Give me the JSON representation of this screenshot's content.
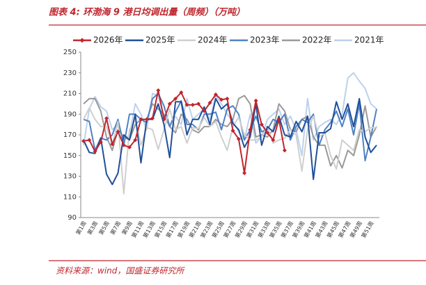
{
  "chart_data": {
    "type": "line",
    "title": "图表 4:  环渤海 9 港日均调出量（周频）（万吨）",
    "source": "资料来源：wind，国盛证券研究所",
    "categories": [
      "第1周",
      null,
      "第3周",
      null,
      "第5周",
      null,
      "第7周",
      null,
      "第9周",
      null,
      "第11周",
      null,
      "第13周",
      null,
      "第15周",
      null,
      "第17周",
      null,
      "第19周",
      null,
      "第21周",
      null,
      "第23周",
      null,
      "第25周",
      null,
      "第27周",
      null,
      "第29周",
      null,
      "第31周",
      null,
      "第33周",
      null,
      "第35周",
      null,
      "第37周",
      null,
      "第39周",
      null,
      "第41周",
      null,
      "第43周",
      null,
      "第45周",
      null,
      "第47周",
      null,
      "第49周",
      null,
      "第51周",
      null
    ],
    "ylim": [
      90,
      250
    ],
    "yticks": [
      90,
      110,
      130,
      150,
      170,
      190,
      210,
      230,
      250
    ],
    "series": [
      {
        "name": "2026年",
        "color": "#c0262d",
        "marker": "diamond",
        "values": [
          164,
          165,
          154,
          163,
          186,
          161,
          173,
          160,
          158,
          165,
          185,
          185,
          186,
          213,
          185,
          200,
          205,
          211,
          199,
          199,
          200,
          193,
          201,
          209,
          204,
          205,
          174,
          166,
          133,
          175,
          203,
          180,
          172,
          165,
          185,
          155,
          null,
          null,
          null,
          null,
          null,
          null,
          null,
          null,
          null,
          null,
          null,
          null,
          null,
          null,
          null,
          null
        ]
      },
      {
        "name": "2025年",
        "color": "#1f4e9a",
        "values": [
          165,
          153,
          152,
          167,
          132,
          122,
          133,
          170,
          165,
          190,
          143,
          185,
          185,
          200,
          180,
          148,
          202,
          202,
          170,
          185,
          185,
          197,
          180,
          205,
          195,
          200,
          181,
          175,
          158,
          168,
          200,
          160,
          178,
          173,
          188,
          170,
          168,
          183,
          173,
          188,
          127,
          172,
          172,
          176,
          202,
          185,
          200,
          178,
          205,
          168,
          153,
          160
        ]
      },
      {
        "name": "2024年",
        "color": "#cfcfcf",
        "values": [
          185,
          196,
          185,
          178,
          178,
          160,
          183,
          113,
          175,
          185,
          160,
          177,
          175,
          156,
          175,
          195,
          175,
          178,
          162,
          177,
          176,
          187,
          178,
          183,
          168,
          155,
          178,
          187,
          170,
          165,
          165,
          168,
          178,
          162,
          165,
          167,
          175,
          170,
          135,
          175,
          188,
          168,
          172,
          150,
          137,
          165,
          160,
          155,
          175,
          173,
          177,
          177
        ]
      },
      {
        "name": "2023年",
        "color": "#4f81c4",
        "values": [
          185,
          183,
          155,
          167,
          165,
          170,
          185,
          160,
          190,
          190,
          185,
          182,
          205,
          210,
          198,
          178,
          192,
          203,
          180,
          180,
          175,
          190,
          190,
          192,
          175,
          195,
          198,
          190,
          165,
          175,
          188,
          173,
          175,
          185,
          182,
          190,
          165,
          178,
          185,
          182,
          190,
          160,
          175,
          182,
          193,
          178,
          195,
          170,
          200,
          145,
          168,
          195
        ]
      },
      {
        "name": "2022年",
        "color": "#999999",
        "values": [
          200,
          205,
          205,
          193,
          168,
          155,
          175,
          168,
          165,
          180,
          185,
          185,
          200,
          195,
          190,
          178,
          172,
          190,
          185,
          175,
          172,
          178,
          178,
          185,
          180,
          178,
          185,
          205,
          208,
          200,
          168,
          170,
          168,
          175,
          200,
          193,
          175,
          173,
          185,
          188,
          168,
          160,
          160,
          140,
          150,
          138,
          155,
          150,
          170,
          198,
          168,
          178
        ]
      },
      {
        "name": "2021年",
        "color": "#bdd1ec",
        "values": [
          160,
          195,
          207,
          197,
          193,
          175,
          180,
          165,
          170,
          200,
          190,
          175,
          210,
          208,
          188,
          178,
          188,
          180,
          205,
          185,
          190,
          195,
          185,
          208,
          200,
          190,
          183,
          173,
          165,
          190,
          162,
          168,
          185,
          190,
          195,
          180,
          188,
          175,
          150,
          205,
          165,
          178,
          182,
          185,
          180,
          190,
          225,
          230,
          222,
          215,
          200,
          195
        ]
      }
    ]
  }
}
